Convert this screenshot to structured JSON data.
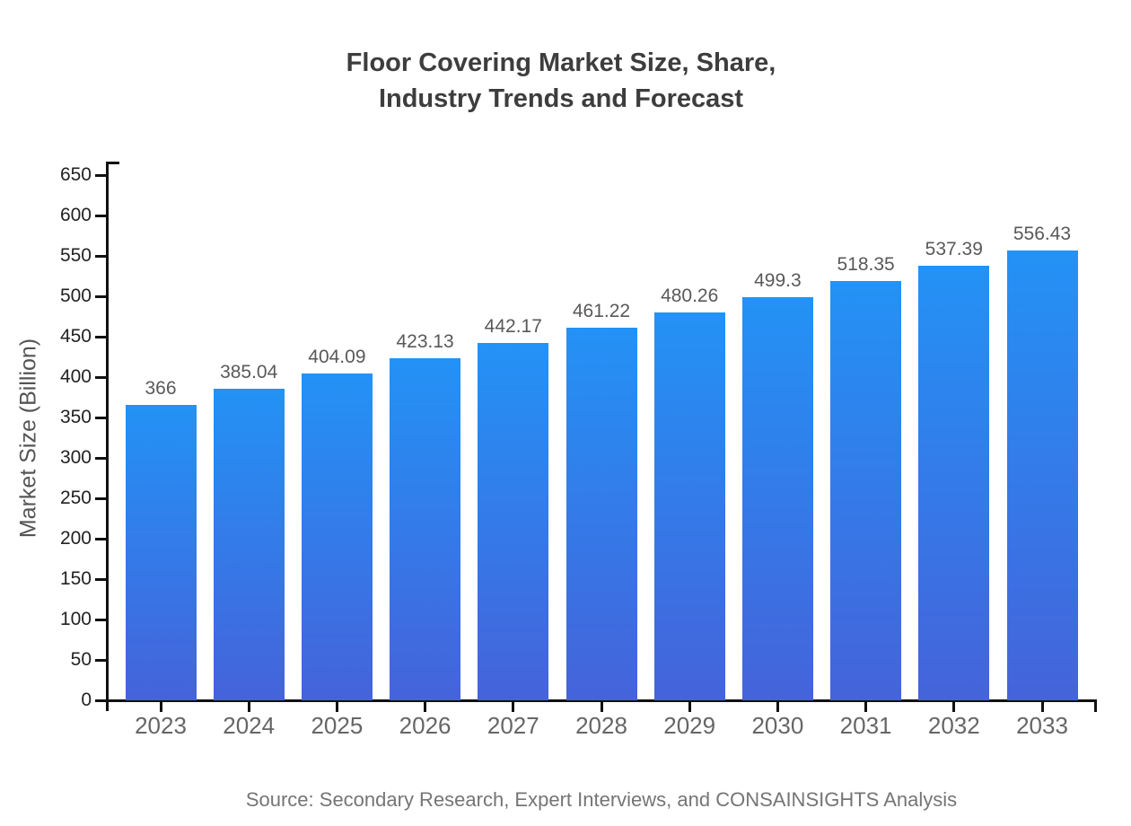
{
  "title": {
    "line1": "Floor Covering Market Size, Share,",
    "line2": "Industry Trends and Forecast"
  },
  "source": {
    "text": "Source: Secondary Research, Expert Interviews, and CONSAINSIGHTS Analysis"
  },
  "chart_data": {
    "type": "bar",
    "title": "Floor Covering Market Size, Share, Industry Trends and Forecast",
    "xlabel": "",
    "ylabel": "Market Size (Billion)",
    "categories": [
      "2023",
      "2024",
      "2025",
      "2026",
      "2027",
      "2028",
      "2029",
      "2030",
      "2031",
      "2032",
      "2033"
    ],
    "values": [
      366,
      385.04,
      404.09,
      423.13,
      442.17,
      461.22,
      480.26,
      499.3,
      518.35,
      537.39,
      556.43
    ],
    "value_labels": [
      "366",
      "385.04",
      "404.09",
      "423.13",
      "442.17",
      "461.22",
      "480.26",
      "499.3",
      "518.35",
      "537.39",
      "556.43"
    ],
    "ylim": [
      0,
      650
    ],
    "ytick_step": 50,
    "grid": false,
    "legend": false,
    "colors": {
      "bar_gradient_top": "#2392f6",
      "bar_gradient_bottom": "#4563da",
      "axis": "#111111",
      "title_text": "#3d3d3d",
      "value_label_text": "#595959",
      "x_tick_text": "#666666",
      "y_tick_text": "#222222",
      "y_axis_title_text": "#555555",
      "source_text": "#757575"
    }
  }
}
